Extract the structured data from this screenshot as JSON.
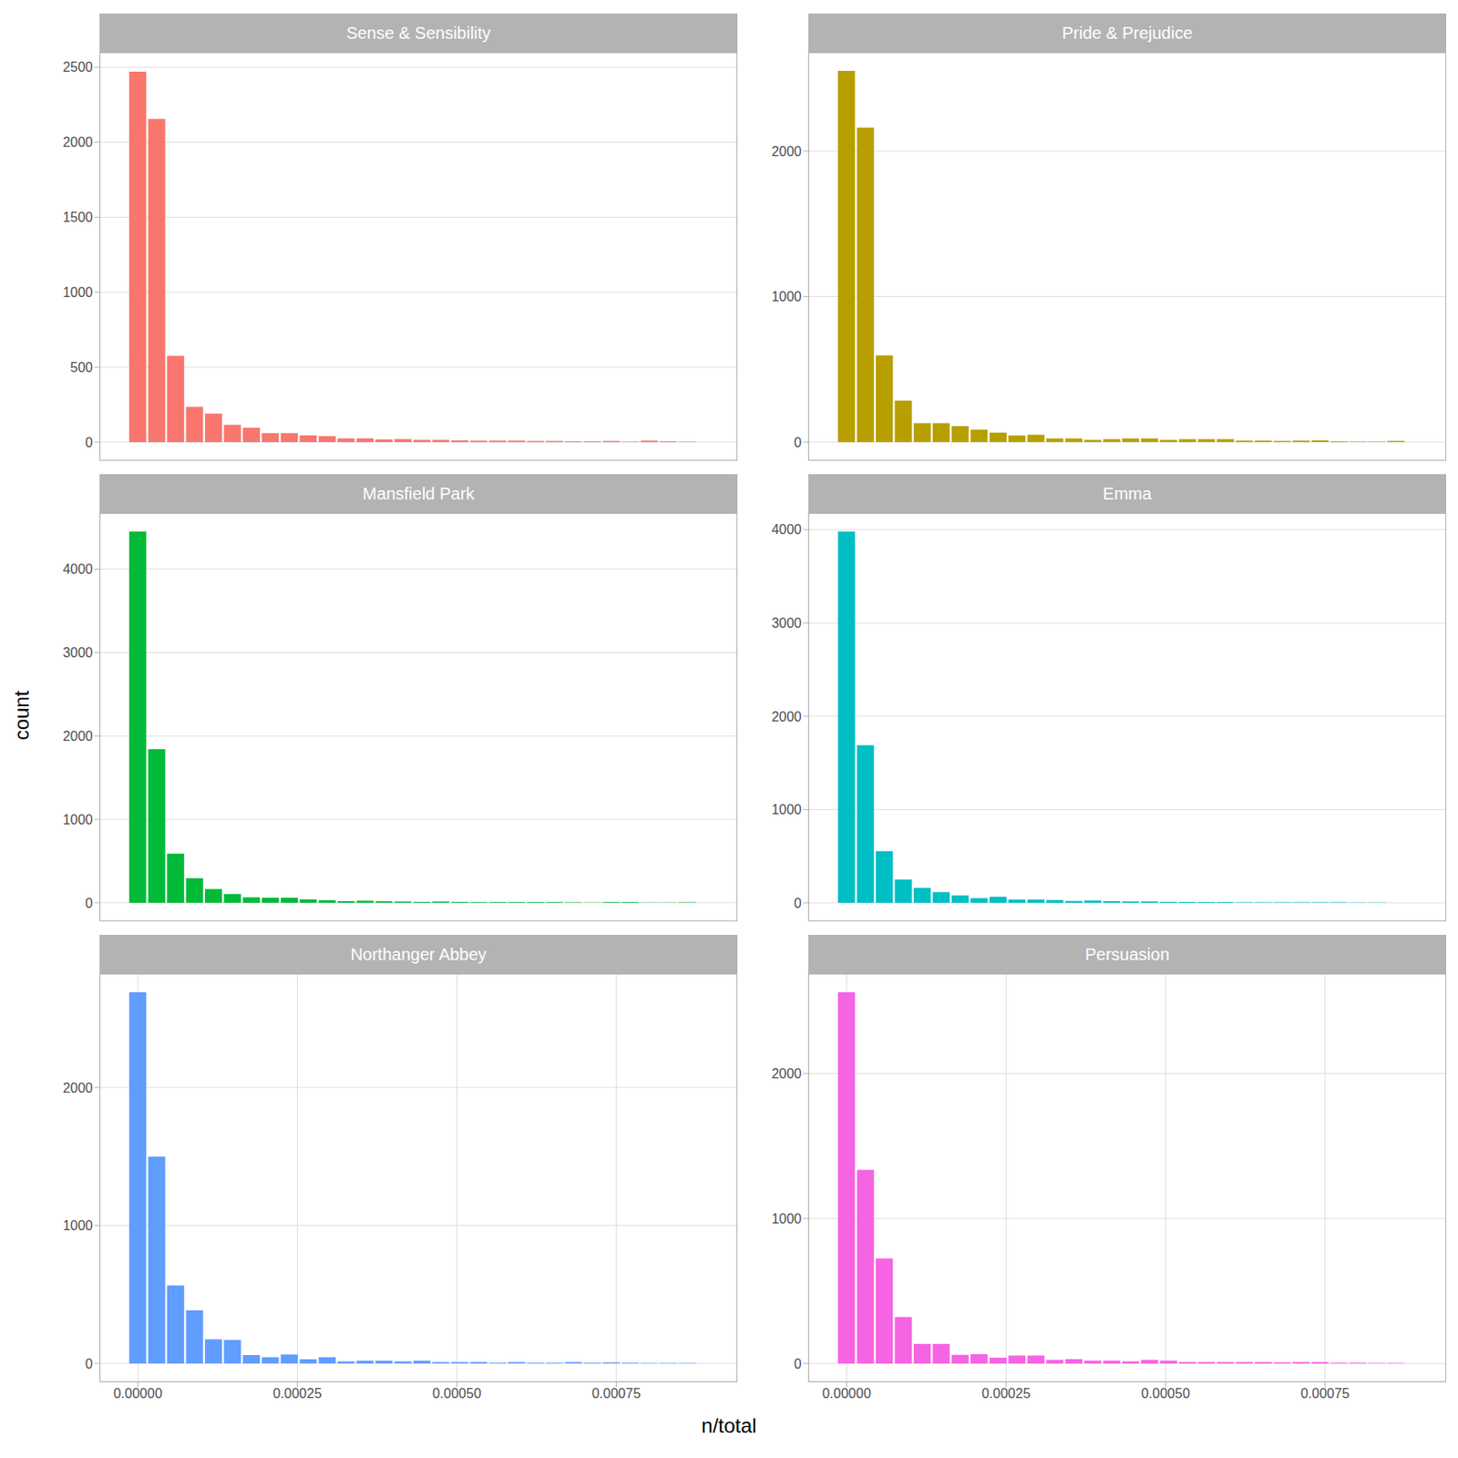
{
  "x_label": "n/total",
  "y_label": "count",
  "chart_data": [
    {
      "type": "histogram",
      "title": "Sense & Sensibility",
      "color": "#F8766D",
      "grid": true,
      "tick_labels": "y",
      "bins": [
        -1.485e-05,
        1.485e-05,
        4.455e-05,
        7.425e-05,
        0.00010395,
        0.00013365,
        0.00016335,
        0.00019305,
        0.00022275,
        0.00025245,
        0.00028215,
        0.00031185,
        0.00034155,
        0.00037125,
        0.00040095,
        0.00043065,
        0.00046035,
        0.00049005,
        0.00051975,
        0.00054945,
        0.00057915,
        0.00060885,
        0.00063855,
        0.00066825,
        0.00069795,
        0.00072765,
        0.00075735,
        0.00078705,
        0.00081675,
        0.00084645,
        0.00087615
      ],
      "values": [
        2470,
        2155,
        575,
        235,
        190,
        115,
        95,
        60,
        60,
        45,
        40,
        25,
        25,
        18,
        20,
        15,
        15,
        12,
        10,
        10,
        10,
        8,
        8,
        5,
        5,
        8,
        3,
        10,
        5,
        3
      ],
      "xlim": [
        -6e-05,
        0.00094
      ],
      "xticks": [
        {
          "value": 0,
          "label": "0.00000"
        },
        {
          "value": 0.00025,
          "label": "0.00025"
        },
        {
          "value": 0.0005,
          "label": "0.00050"
        },
        {
          "value": 0.00075,
          "label": "0.00075"
        }
      ],
      "ylim": [
        -124,
        2600
      ],
      "yticks": [
        0,
        500,
        1000,
        1500,
        2000,
        2500
      ]
    },
    {
      "type": "histogram",
      "title": "Pride & Prejudice",
      "color": "#B79F00",
      "grid": true,
      "tick_labels": "y",
      "bins": [
        -1.485e-05,
        1.485e-05,
        4.455e-05,
        7.425e-05,
        0.00010395,
        0.00013365,
        0.00016335,
        0.00019305,
        0.00022275,
        0.00025245,
        0.00028215,
        0.00031185,
        0.00034155,
        0.00037125,
        0.00040095,
        0.00043065,
        0.00046035,
        0.00049005,
        0.00051975,
        0.00054945,
        0.00057915,
        0.00060885,
        0.00063855,
        0.00066825,
        0.00069795,
        0.00072765,
        0.00075735,
        0.00078705,
        0.00081675,
        0.00084645,
        0.00087615
      ],
      "values": [
        2550,
        2160,
        595,
        285,
        130,
        130,
        110,
        85,
        65,
        45,
        50,
        25,
        25,
        15,
        20,
        25,
        25,
        15,
        20,
        20,
        20,
        10,
        10,
        8,
        10,
        12,
        5,
        3,
        3,
        8
      ],
      "xlim": [
        -6e-05,
        0.00094
      ],
      "xticks": [
        {
          "value": 0,
          "label": "0.00000"
        },
        {
          "value": 0.00025,
          "label": "0.00025"
        },
        {
          "value": 0.0005,
          "label": "0.00050"
        },
        {
          "value": 0.00075,
          "label": "0.00075"
        }
      ],
      "ylim": [
        -128,
        2678
      ],
      "yticks": [
        0,
        1000,
        2000
      ]
    },
    {
      "type": "histogram",
      "title": "Mansfield Park",
      "color": "#00BA38",
      "grid": true,
      "tick_labels": "y",
      "bins": [
        -1.485e-05,
        1.485e-05,
        4.455e-05,
        7.425e-05,
        0.00010395,
        0.00013365,
        0.00016335,
        0.00019305,
        0.00022275,
        0.00025245,
        0.00028215,
        0.00031185,
        0.00034155,
        0.00037125,
        0.00040095,
        0.00043065,
        0.00046035,
        0.00049005,
        0.00051975,
        0.00054945,
        0.00057915,
        0.00060885,
        0.00063855,
        0.00066825,
        0.00069795,
        0.00072765,
        0.00075735,
        0.00078705,
        0.00081675,
        0.00084645,
        0.00087615
      ],
      "values": [
        4450,
        1840,
        590,
        295,
        165,
        105,
        65,
        60,
        60,
        40,
        30,
        20,
        25,
        18,
        15,
        10,
        15,
        10,
        8,
        8,
        8,
        8,
        8,
        5,
        3,
        8,
        8,
        3,
        3,
        5
      ],
      "xlim": [
        -6e-05,
        0.00094
      ],
      "xticks": [
        {
          "value": 0,
          "label": "0.00000"
        },
        {
          "value": 0.00025,
          "label": "0.00025"
        },
        {
          "value": 0.0005,
          "label": "0.00050"
        },
        {
          "value": 0.00075,
          "label": "0.00075"
        }
      ],
      "ylim": [
        -223,
        4673
      ],
      "yticks": [
        0,
        1000,
        2000,
        3000,
        4000
      ]
    },
    {
      "type": "histogram",
      "title": "Emma",
      "color": "#00BFC4",
      "grid": true,
      "tick_labels": "y",
      "bins": [
        -1.485e-05,
        1.485e-05,
        4.455e-05,
        7.425e-05,
        0.00010395,
        0.00013365,
        0.00016335,
        0.00019305,
        0.00022275,
        0.00025245,
        0.00028215,
        0.00031185,
        0.00034155,
        0.00037125,
        0.00040095,
        0.00043065,
        0.00046035,
        0.00049005,
        0.00051975,
        0.00054945,
        0.00057915,
        0.00060885,
        0.00063855,
        0.00066825,
        0.00069795,
        0.00072765,
        0.00075735,
        0.00078705,
        0.00081675,
        0.00084645,
        0.00087615
      ],
      "values": [
        3980,
        1690,
        555,
        250,
        160,
        115,
        80,
        50,
        65,
        35,
        35,
        30,
        20,
        25,
        18,
        15,
        15,
        10,
        8,
        8,
        8,
        5,
        5,
        5,
        5,
        5,
        5,
        3,
        3,
        0
      ],
      "xlim": [
        -6e-05,
        0.00094
      ],
      "xticks": [
        {
          "value": 0,
          "label": "0.00000"
        },
        {
          "value": 0.00025,
          "label": "0.00025"
        },
        {
          "value": 0.0005,
          "label": "0.00050"
        },
        {
          "value": 0.00075,
          "label": "0.00075"
        }
      ],
      "ylim": [
        -199,
        4179
      ],
      "yticks": [
        0,
        1000,
        2000,
        3000,
        4000
      ]
    },
    {
      "type": "histogram",
      "title": "Northanger Abbey",
      "color": "#619CFF",
      "grid": true,
      "tick_labels": true,
      "bins": [
        -1.485e-05,
        1.485e-05,
        4.455e-05,
        7.425e-05,
        0.00010395,
        0.00013365,
        0.00016335,
        0.00019305,
        0.00022275,
        0.00025245,
        0.00028215,
        0.00031185,
        0.00034155,
        0.00037125,
        0.00040095,
        0.00043065,
        0.00046035,
        0.00049005,
        0.00051975,
        0.00054945,
        0.00057915,
        0.00060885,
        0.00063855,
        0.00066825,
        0.00069795,
        0.00072765,
        0.00075735,
        0.00078705,
        0.00081675,
        0.00084645,
        0.00087615
      ],
      "values": [
        2690,
        1500,
        565,
        385,
        175,
        170,
        60,
        45,
        65,
        30,
        45,
        15,
        20,
        20,
        15,
        20,
        10,
        10,
        10,
        5,
        10,
        5,
        5,
        10,
        5,
        8,
        5,
        3,
        3,
        3
      ],
      "xlim": [
        -6e-05,
        0.00094
      ],
      "xticks": [
        {
          "value": 0,
          "label": "0.00000"
        },
        {
          "value": 0.00025,
          "label": "0.00025"
        },
        {
          "value": 0.0005,
          "label": "0.00050"
        },
        {
          "value": 0.00075,
          "label": "0.00075"
        }
      ],
      "ylim": [
        -135,
        2825
      ],
      "yticks": [
        0,
        1000,
        2000
      ]
    },
    {
      "type": "histogram",
      "title": "Persuasion",
      "color": "#F564E3",
      "grid": true,
      "tick_labels": true,
      "bins": [
        -1.485e-05,
        1.485e-05,
        4.455e-05,
        7.425e-05,
        0.00010395,
        0.00013365,
        0.00016335,
        0.00019305,
        0.00022275,
        0.00025245,
        0.00028215,
        0.00031185,
        0.00034155,
        0.00037125,
        0.00040095,
        0.00043065,
        0.00046035,
        0.00049005,
        0.00051975,
        0.00054945,
        0.00057915,
        0.00060885,
        0.00063855,
        0.00066825,
        0.00069795,
        0.00072765,
        0.00075735,
        0.00078705,
        0.00081675,
        0.00084645,
        0.00087615
      ],
      "values": [
        2560,
        1335,
        725,
        320,
        135,
        135,
        60,
        65,
        40,
        55,
        55,
        25,
        30,
        20,
        20,
        15,
        25,
        20,
        10,
        10,
        10,
        10,
        10,
        8,
        10,
        10,
        5,
        5,
        3,
        3
      ],
      "xlim": [
        -6e-05,
        0.00094
      ],
      "xticks": [
        {
          "value": 0,
          "label": "0.00000"
        },
        {
          "value": 0.00025,
          "label": "0.00025"
        },
        {
          "value": 0.0005,
          "label": "0.00050"
        },
        {
          "value": 0.00075,
          "label": "0.00075"
        }
      ],
      "ylim": [
        -128,
        2688
      ],
      "yticks": [
        0,
        1000,
        2000
      ]
    }
  ]
}
